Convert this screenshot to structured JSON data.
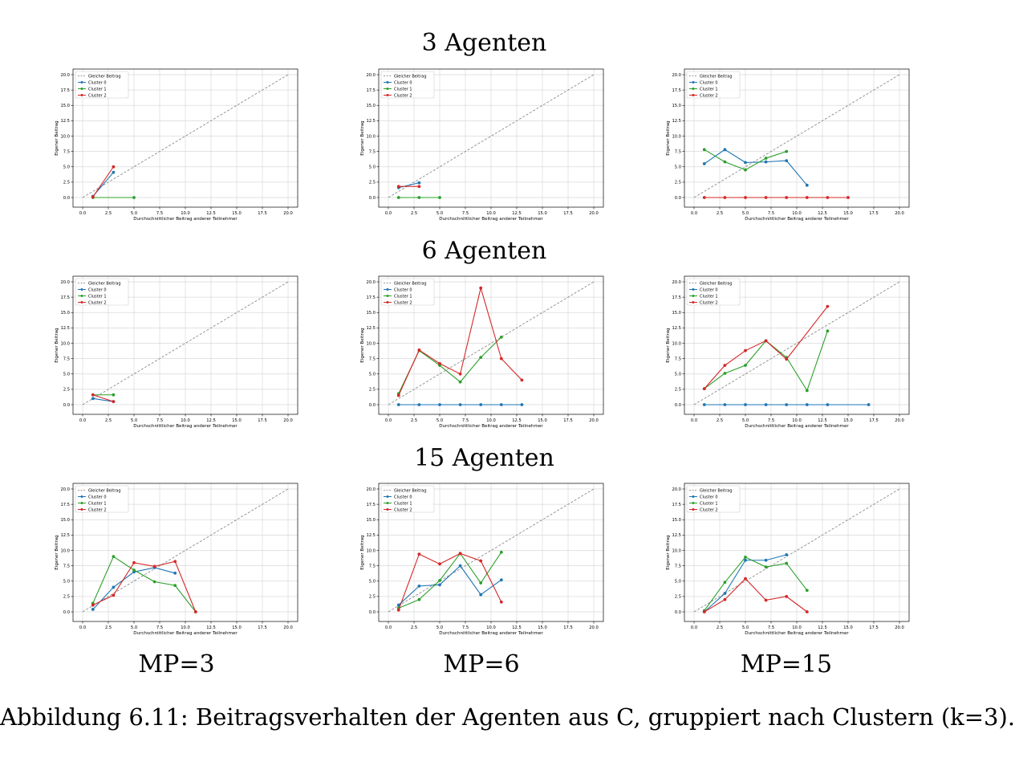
{
  "row_titles": [
    "3 Agenten",
    "6 Agenten",
    "15 Agenten"
  ],
  "column_labels": [
    "MP=3",
    "MP=6",
    "MP=15"
  ],
  "caption": "Abbildung 6.11: Beitragsverhalten der Agenten aus C, gruppiert nach Clustern (k=3).",
  "colors": {
    "Gleicher Beitrag": "#7f7f7f",
    "Cluster 0": "#1f77b4",
    "Cluster 1": "#2ca02c",
    "Cluster 2": "#d62728"
  },
  "chart_data": [
    {
      "type": "line",
      "row": "3 Agenten",
      "column": "MP=3",
      "xlabel": "Durchschnittlicher Beitrag anderer Teilnehmer",
      "ylabel": "Eigener Beitrag",
      "xlim": [
        0,
        20
      ],
      "ylim": [
        0,
        20
      ],
      "xticks": [
        "0.0",
        "2.5",
        "5.0",
        "7.5",
        "10.0",
        "12.5",
        "15.0",
        "17.5",
        "20.0"
      ],
      "yticks": [
        "0.0",
        "2.5",
        "5.0",
        "7.5",
        "10.0",
        "12.5",
        "15.0",
        "17.5",
        "20.0"
      ],
      "grid": true,
      "legend": "top-left",
      "legend_entries": [
        "Gleicher Beitrag",
        "Cluster 0",
        "Cluster 1",
        "Cluster 2"
      ],
      "series": [
        {
          "name": "Cluster 0",
          "x": [
            1,
            3
          ],
          "y": [
            0.2,
            4.1
          ]
        },
        {
          "name": "Cluster 1",
          "x": [
            1,
            5
          ],
          "y": [
            0.0,
            0.0
          ]
        },
        {
          "name": "Cluster 2",
          "x": [
            1,
            3
          ],
          "y": [
            0.1,
            5.0
          ]
        }
      ]
    },
    {
      "type": "line",
      "row": "3 Agenten",
      "column": "MP=6",
      "xlabel": "Durchschnittlicher Beitrag anderer Teilnehmer",
      "ylabel": "Eigener Beitrag",
      "xlim": [
        0,
        20
      ],
      "ylim": [
        0,
        20
      ],
      "xticks": [
        "0.0",
        "2.5",
        "5.0",
        "7.5",
        "10.0",
        "12.5",
        "15.0",
        "17.5",
        "20.0"
      ],
      "yticks": [
        "0.0",
        "2.5",
        "5.0",
        "7.5",
        "10.0",
        "12.5",
        "15.0",
        "17.5",
        "20.0"
      ],
      "grid": true,
      "legend": "top-left",
      "legend_entries": [
        "Gleicher Beitrag",
        "Cluster 0",
        "Cluster 1",
        "Cluster 2"
      ],
      "series": [
        {
          "name": "Cluster 0",
          "x": [
            1,
            3
          ],
          "y": [
            1.6,
            2.4
          ]
        },
        {
          "name": "Cluster 1",
          "x": [
            1,
            3,
            5
          ],
          "y": [
            0.0,
            0.0,
            0.0
          ]
        },
        {
          "name": "Cluster 2",
          "x": [
            1,
            3
          ],
          "y": [
            1.8,
            1.8
          ]
        }
      ]
    },
    {
      "type": "line",
      "row": "3 Agenten",
      "column": "MP=15",
      "xlabel": "Durchschnittlicher Beitrag anderer Teilnehmer",
      "ylabel": "Eigener Beitrag",
      "xlim": [
        0,
        20
      ],
      "ylim": [
        0,
        20
      ],
      "xticks": [
        "0.0",
        "2.5",
        "5.0",
        "7.5",
        "10.0",
        "12.5",
        "15.0",
        "17.5",
        "20.0"
      ],
      "yticks": [
        "0.0",
        "2.5",
        "5.0",
        "7.5",
        "10.0",
        "12.5",
        "15.0",
        "17.5",
        "20.0"
      ],
      "grid": true,
      "legend": "top-left",
      "legend_entries": [
        "Gleicher Beitrag",
        "Cluster 0",
        "Cluster 1",
        "Cluster 2"
      ],
      "series": [
        {
          "name": "Cluster 0",
          "x": [
            1,
            3,
            5,
            7,
            9,
            11
          ],
          "y": [
            5.5,
            7.8,
            5.7,
            5.8,
            6.0,
            2.0
          ]
        },
        {
          "name": "Cluster 1",
          "x": [
            1,
            3,
            5,
            7,
            9
          ],
          "y": [
            7.8,
            5.8,
            4.5,
            6.4,
            7.5
          ]
        },
        {
          "name": "Cluster 2",
          "x": [
            1,
            3,
            5,
            7,
            9,
            11,
            13,
            15
          ],
          "y": [
            0,
            0,
            0,
            0,
            0,
            0,
            0,
            0
          ]
        }
      ]
    },
    {
      "type": "line",
      "row": "6 Agenten",
      "column": "MP=3",
      "xlabel": "Durchschnittlicher Beitrag anderer Teilnehmer",
      "ylabel": "Eigener Beitrag",
      "xlim": [
        0,
        20
      ],
      "ylim": [
        0,
        20
      ],
      "xticks": [
        "0.0",
        "2.5",
        "5.0",
        "7.5",
        "10.0",
        "12.5",
        "15.0",
        "17.5",
        "20.0"
      ],
      "yticks": [
        "0.0",
        "2.5",
        "5.0",
        "7.5",
        "10.0",
        "12.5",
        "15.0",
        "17.5",
        "20.0"
      ],
      "grid": true,
      "legend": "top-left",
      "legend_entries": [
        "Gleicher Beitrag",
        "Cluster 0",
        "Cluster 1",
        "Cluster 2"
      ],
      "series": [
        {
          "name": "Cluster 0",
          "x": [
            1,
            3
          ],
          "y": [
            1.0,
            0.5
          ]
        },
        {
          "name": "Cluster 1",
          "x": [
            1,
            3
          ],
          "y": [
            1.6,
            1.6
          ]
        },
        {
          "name": "Cluster 2",
          "x": [
            1,
            3
          ],
          "y": [
            1.6,
            0.5
          ]
        }
      ]
    },
    {
      "type": "line",
      "row": "6 Agenten",
      "column": "MP=6",
      "xlabel": "Durchschnittlicher Beitrag anderer Teilnehmer",
      "ylabel": "Eigener Beitrag",
      "xlim": [
        0,
        20
      ],
      "ylim": [
        0,
        20
      ],
      "xticks": [
        "0.0",
        "2.5",
        "5.0",
        "7.5",
        "10.0",
        "12.5",
        "15.0",
        "17.5",
        "20.0"
      ],
      "yticks": [
        "0.0",
        "2.5",
        "5.0",
        "7.5",
        "10.0",
        "12.5",
        "15.0",
        "17.5",
        "20.0"
      ],
      "grid": true,
      "legend": "top-left",
      "legend_entries": [
        "Gleicher Beitrag",
        "Cluster 0",
        "Cluster 1",
        "Cluster 2"
      ],
      "series": [
        {
          "name": "Cluster 0",
          "x": [
            1,
            3,
            5,
            7,
            9,
            11,
            13
          ],
          "y": [
            0,
            0,
            0,
            0,
            0,
            0,
            0
          ]
        },
        {
          "name": "Cluster 1",
          "x": [
            1,
            3,
            5,
            7,
            9,
            11
          ],
          "y": [
            1.8,
            8.8,
            6.4,
            3.7,
            7.7,
            11.0
          ]
        },
        {
          "name": "Cluster 2",
          "x": [
            1,
            3,
            5,
            7,
            9,
            11,
            13
          ],
          "y": [
            1.5,
            8.9,
            6.7,
            5.0,
            19.0,
            7.5,
            4.0
          ]
        }
      ]
    },
    {
      "type": "line",
      "row": "6 Agenten",
      "column": "MP=15",
      "xlabel": "Durchschnittlicher Beitrag anderer Teilnehmer",
      "ylabel": "Eigener Beitrag",
      "xlim": [
        0,
        20
      ],
      "ylim": [
        0,
        20
      ],
      "xticks": [
        "0.0",
        "2.5",
        "5.0",
        "7.5",
        "10.0",
        "12.5",
        "15.0",
        "17.5",
        "20.0"
      ],
      "yticks": [
        "0.0",
        "2.5",
        "5.0",
        "7.5",
        "10.0",
        "12.5",
        "15.0",
        "17.5",
        "20.0"
      ],
      "grid": true,
      "legend": "top-left",
      "legend_entries": [
        "Gleicher Beitrag",
        "Cluster 0",
        "Cluster 1",
        "Cluster 2"
      ],
      "series": [
        {
          "name": "Cluster 0",
          "x": [
            1,
            3,
            5,
            7,
            9,
            11,
            13,
            17
          ],
          "y": [
            0,
            0,
            0,
            0,
            0,
            0,
            0,
            0
          ]
        },
        {
          "name": "Cluster 1",
          "x": [
            1,
            3,
            5,
            7,
            9,
            11,
            13
          ],
          "y": [
            2.6,
            5.1,
            6.4,
            10.4,
            7.7,
            2.3,
            12.0
          ]
        },
        {
          "name": "Cluster 2",
          "x": [
            1,
            3,
            5,
            7,
            9,
            13
          ],
          "y": [
            2.6,
            6.4,
            8.8,
            10.4,
            7.4,
            16.0
          ]
        }
      ]
    },
    {
      "type": "line",
      "row": "15 Agenten",
      "column": "MP=3",
      "xlabel": "Durchschnittlicher Beitrag anderer Teilnehmer",
      "ylabel": "Eigener Beitrag",
      "xlim": [
        0,
        20
      ],
      "ylim": [
        0,
        20
      ],
      "xticks": [
        "0.0",
        "2.5",
        "5.0",
        "7.5",
        "10.0",
        "12.5",
        "15.0",
        "17.5",
        "20.0"
      ],
      "yticks": [
        "0.0",
        "2.5",
        "5.0",
        "7.5",
        "10.0",
        "12.5",
        "15.0",
        "17.5",
        "20.0"
      ],
      "grid": true,
      "legend": "top-left",
      "legend_entries": [
        "Gleicher Beitrag",
        "Cluster 0",
        "Cluster 1",
        "Cluster 2"
      ],
      "series": [
        {
          "name": "Cluster 0",
          "x": [
            1,
            3,
            5,
            7,
            9
          ],
          "y": [
            0.4,
            4.0,
            6.5,
            7.2,
            6.3
          ]
        },
        {
          "name": "Cluster 1",
          "x": [
            1,
            3,
            5,
            7,
            9,
            11
          ],
          "y": [
            1.4,
            9.0,
            6.8,
            4.9,
            4.3,
            0.0
          ]
        },
        {
          "name": "Cluster 2",
          "x": [
            1,
            3,
            5,
            7,
            9,
            11
          ],
          "y": [
            1.1,
            2.7,
            8.0,
            7.4,
            8.2,
            0.0
          ]
        }
      ]
    },
    {
      "type": "line",
      "row": "15 Agenten",
      "column": "MP=6",
      "xlabel": "Durchschnittlicher Beitrag anderer Teilnehmer",
      "ylabel": "Eigener Beitrag",
      "xlim": [
        0,
        20
      ],
      "ylim": [
        0,
        20
      ],
      "xticks": [
        "0.0",
        "2.5",
        "5.0",
        "7.5",
        "10.0",
        "12.5",
        "15.0",
        "17.5",
        "20.0"
      ],
      "yticks": [
        "0.0",
        "2.5",
        "5.0",
        "7.5",
        "10.0",
        "12.5",
        "15.0",
        "17.5",
        "20.0"
      ],
      "grid": true,
      "legend": "top-left",
      "legend_entries": [
        "Gleicher Beitrag",
        "Cluster 0",
        "Cluster 1",
        "Cluster 2"
      ],
      "series": [
        {
          "name": "Cluster 0",
          "x": [
            1,
            3,
            5,
            7,
            9,
            11
          ],
          "y": [
            1.1,
            4.2,
            4.4,
            7.5,
            2.8,
            5.2
          ]
        },
        {
          "name": "Cluster 1",
          "x": [
            1,
            3,
            5,
            7,
            9,
            11
          ],
          "y": [
            0.6,
            2.0,
            5.1,
            9.5,
            4.7,
            9.7
          ]
        },
        {
          "name": "Cluster 2",
          "x": [
            1,
            3,
            5,
            7,
            9,
            11
          ],
          "y": [
            0.3,
            9.4,
            7.8,
            9.5,
            8.3,
            1.6
          ]
        }
      ]
    },
    {
      "type": "line",
      "row": "15 Agenten",
      "column": "MP=15",
      "xlabel": "Durchschnittlicher Beitrag anderer Teilnehmer",
      "ylabel": "Eigener Beitrag",
      "xlim": [
        0,
        20
      ],
      "ylim": [
        0,
        20
      ],
      "xticks": [
        "0.0",
        "2.5",
        "5.0",
        "7.5",
        "10.0",
        "12.5",
        "15.0",
        "17.5",
        "20.0"
      ],
      "yticks": [
        "0.0",
        "2.5",
        "5.0",
        "7.5",
        "10.0",
        "12.5",
        "15.0",
        "17.5",
        "20.0"
      ],
      "grid": true,
      "legend": "top-left",
      "legend_entries": [
        "Gleicher Beitrag",
        "Cluster 0",
        "Cluster 1",
        "Cluster 2"
      ],
      "series": [
        {
          "name": "Cluster 0",
          "x": [
            1,
            3,
            5,
            7,
            9
          ],
          "y": [
            0.0,
            3.0,
            8.4,
            8.4,
            9.3
          ]
        },
        {
          "name": "Cluster 1",
          "x": [
            1,
            3,
            5,
            7,
            9,
            11
          ],
          "y": [
            0.2,
            4.8,
            8.9,
            7.3,
            7.9,
            3.5
          ]
        },
        {
          "name": "Cluster 2",
          "x": [
            1,
            3,
            5,
            7,
            9,
            11
          ],
          "y": [
            0.0,
            2.0,
            5.4,
            1.9,
            2.5,
            0.0
          ]
        }
      ]
    }
  ]
}
